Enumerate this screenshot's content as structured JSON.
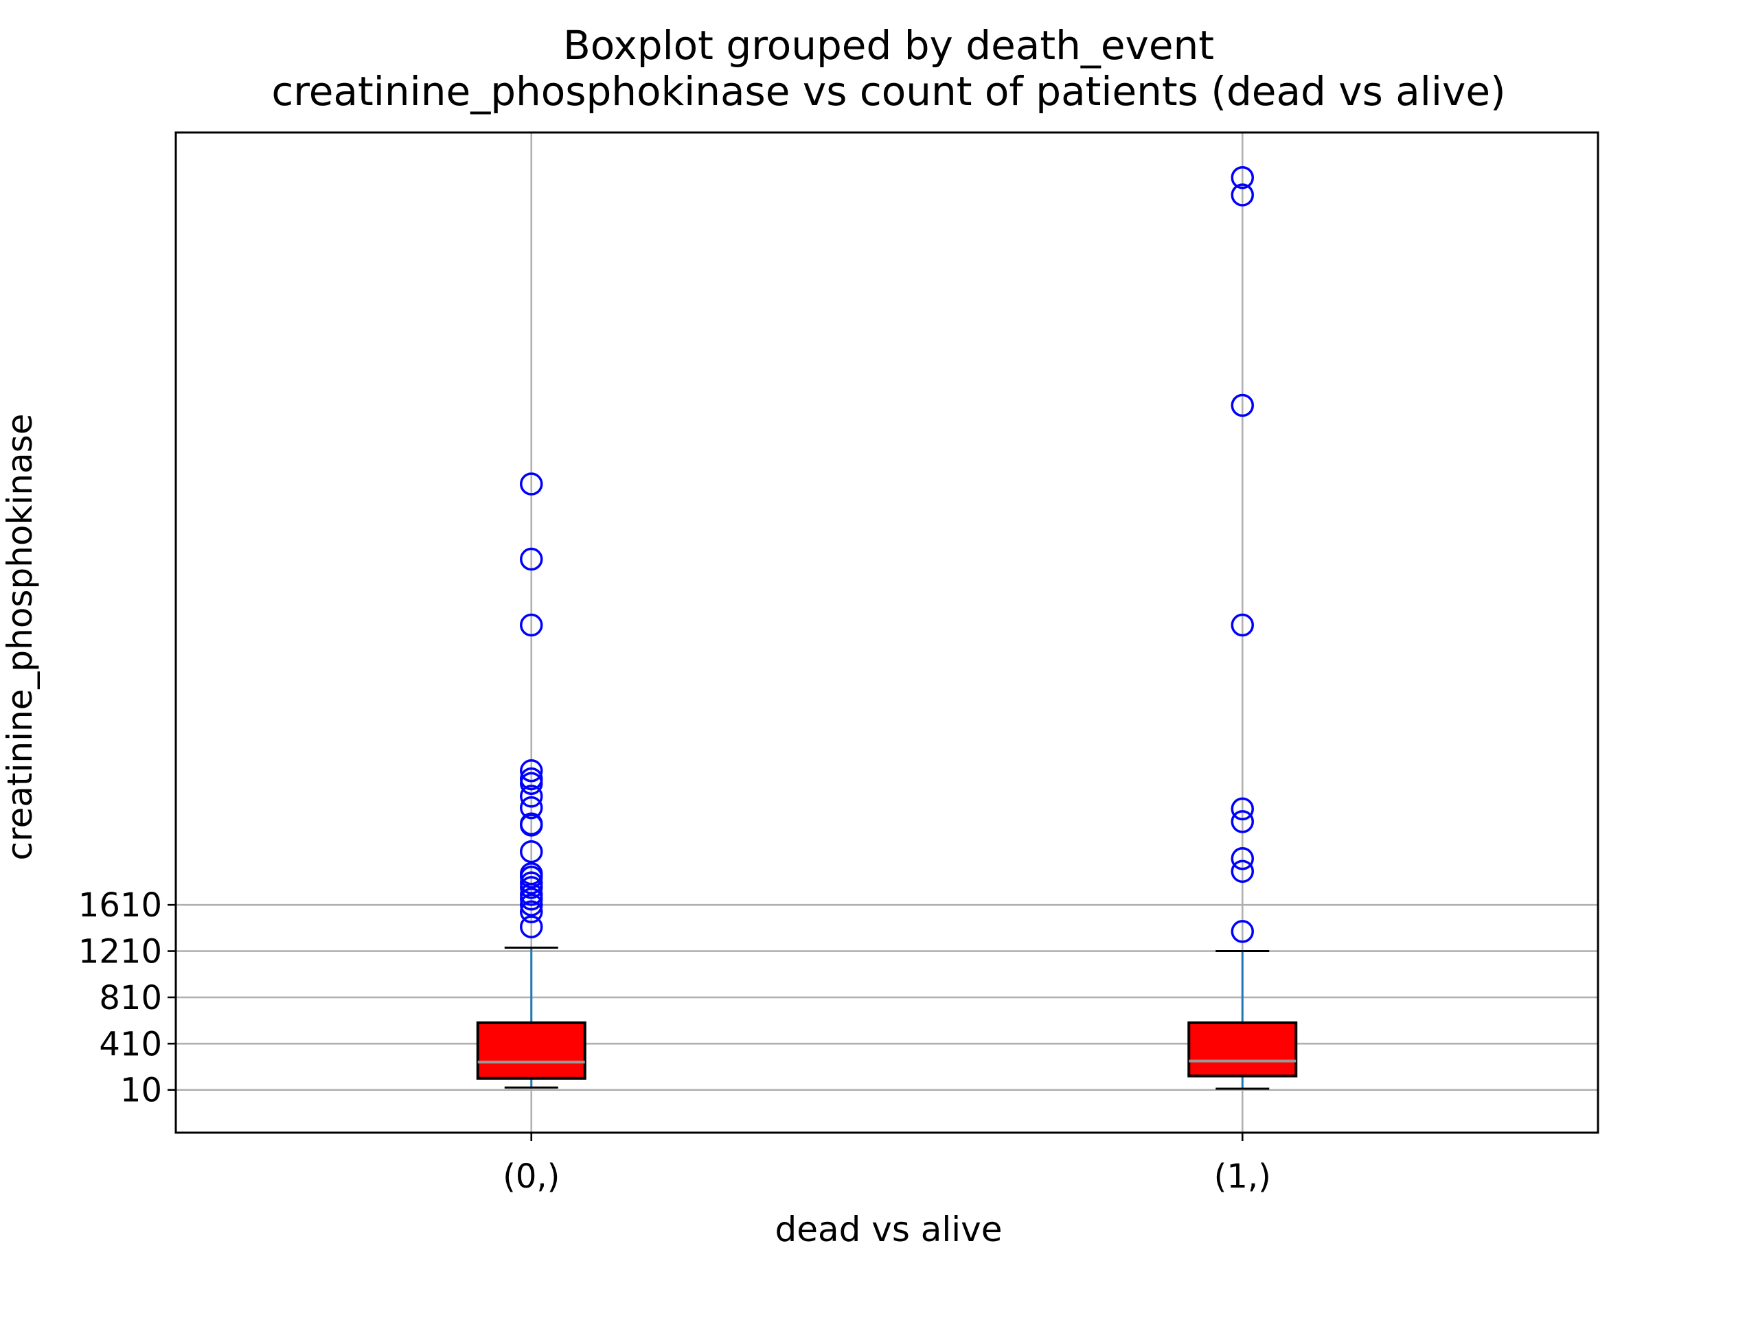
{
  "chart_data": {
    "type": "boxplot",
    "title": "Boxplot grouped by death_event",
    "subtitle": "creatinine_phosphokinase vs count of patients (dead vs alive)",
    "xlabel": "dead vs alive",
    "ylabel": "creatinine_phosphokinase",
    "categories": [
      "(0,)",
      "(1,)"
    ],
    "yticks": [
      10,
      410,
      810,
      1210,
      1610
    ],
    "ytick_labels": [
      "10",
      "410",
      "810",
      "1210",
      "1610"
    ],
    "ylim": [
      -360,
      8290
    ],
    "grid": true,
    "colors": {
      "box_fill": "#ff0000",
      "box_edge": "#000000",
      "whisker": "#1f77b4",
      "median": "#999999",
      "flier": "#0000ff",
      "grid": "#b0b0b0"
    },
    "boxes": [
      {
        "category": "(0,)",
        "whisker_low": 30,
        "q1": 110,
        "median": 250,
        "q3": 590,
        "whisker_high": 1240,
        "fliers": [
          1420,
          1550,
          1610,
          1660,
          1700,
          1760,
          1800,
          1850,
          1880,
          2070,
          2300,
          2310,
          2450,
          2550,
          2660,
          2700,
          2770,
          4030,
          4600,
          5250
        ]
      },
      {
        "category": "(1,)",
        "whisker_low": 20,
        "q1": 130,
        "median": 260,
        "q3": 590,
        "whisker_high": 1210,
        "fliers": [
          1380,
          1900,
          2010,
          2330,
          2440,
          4030,
          5930,
          7750,
          7900
        ]
      }
    ]
  }
}
